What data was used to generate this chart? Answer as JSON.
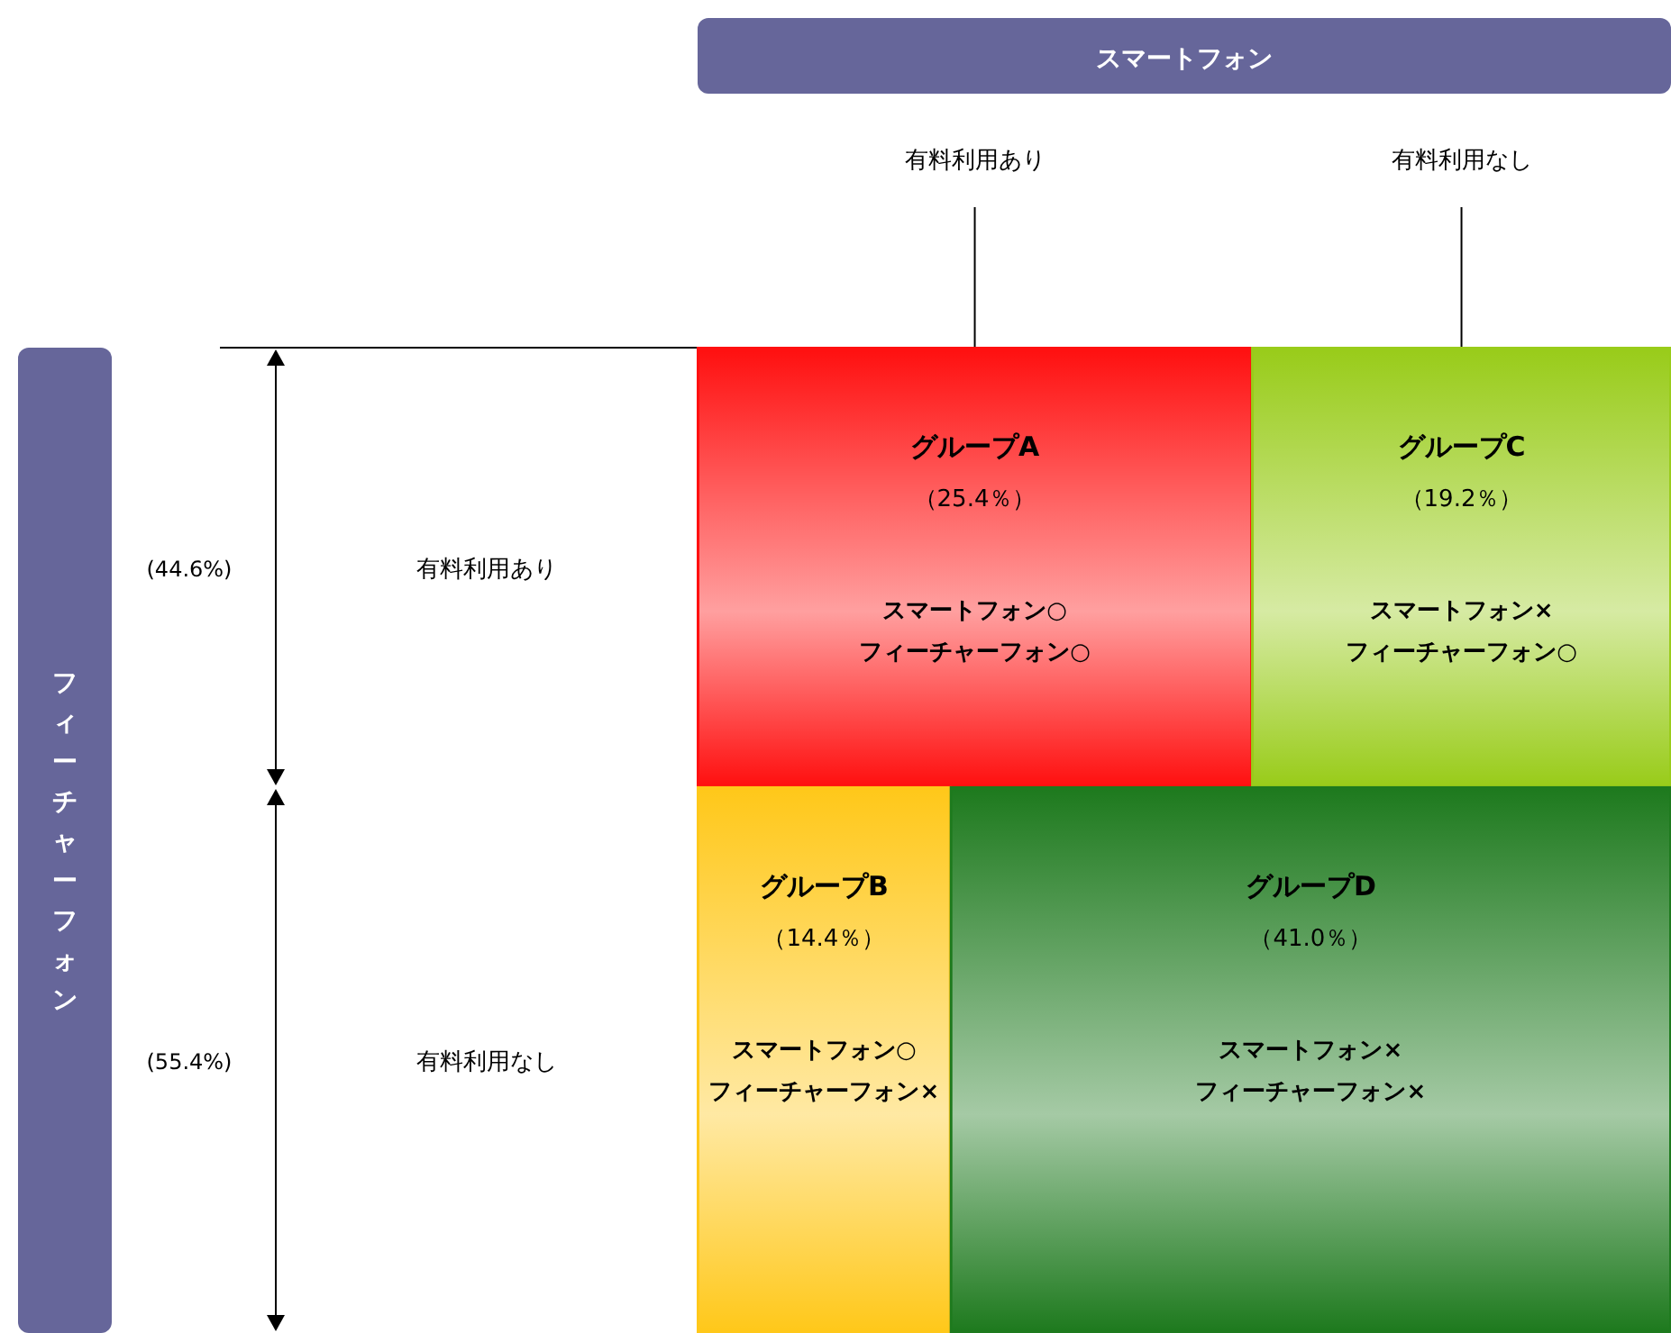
{
  "chart_data": {
    "type": "other",
    "title": "スマートフォン",
    "ylabel": "フィーチャーフォン",
    "categories": [
      "有料利用あり",
      "有料利用なし"
    ],
    "y_categories": [
      "有料利用あり",
      "有料利用なし"
    ],
    "y2_categories": [
      "(44.6%)",
      "(55.4%)"
    ],
    "series": [
      {
        "values": [
          25.4,
          19.2
        ],
        "value_labels": [
          "（25.4％）",
          "（19.2％）"
        ],
        "colors": [
          "#ff1010",
          "#99cc1a"
        ]
      },
      {
        "values": [
          14.4,
          41.0
        ],
        "value_labels": [
          "（14.4％）",
          "（41.0％）"
        ],
        "colors": [
          "#ffc81a",
          "#1e7a1e"
        ]
      }
    ],
    "annotations": [
      "グループA",
      "スマートフォン○",
      "フィーチャーフォン○",
      "グループC",
      "スマートフォン×",
      "フィーチャーフォン○",
      "グループB",
      "スマートフォン○",
      "フィーチャーフォン×",
      "グループD",
      "スマートフォン×",
      "フィーチャーフォン×"
    ]
  }
}
